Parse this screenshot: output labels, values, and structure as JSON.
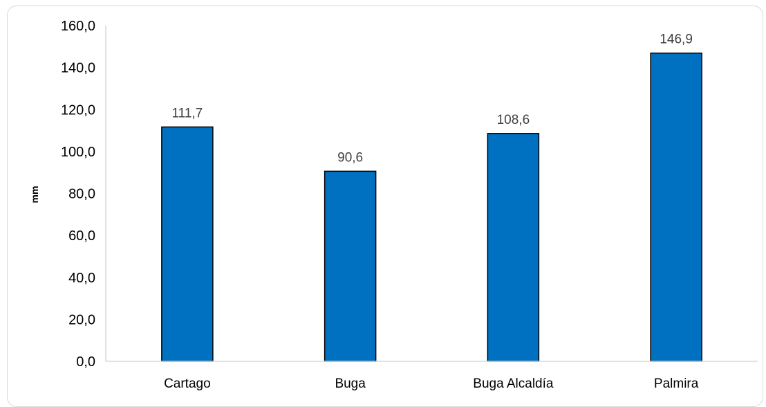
{
  "chart_data": {
    "type": "bar",
    "categories": [
      "Cartago",
      "Buga",
      "Buga Alcaldía",
      "Palmira"
    ],
    "values": [
      111.7,
      90.6,
      108.6,
      146.9
    ],
    "data_labels": [
      "111,7",
      "90,6",
      "108,6",
      "146,9"
    ],
    "title": "",
    "xlabel": "",
    "ylabel": "mm",
    "ylim": [
      0,
      160
    ],
    "yticks": [
      0,
      20,
      40,
      60,
      80,
      100,
      120,
      140,
      160
    ],
    "ytick_labels": [
      "0,0",
      "20,0",
      "40,0",
      "60,0",
      "80,0",
      "100,0",
      "120,0",
      "140,0",
      "160,0"
    ],
    "grid": false,
    "legend": "none",
    "bar_color": "#0070C0",
    "bar_edge_color": "#000000"
  }
}
